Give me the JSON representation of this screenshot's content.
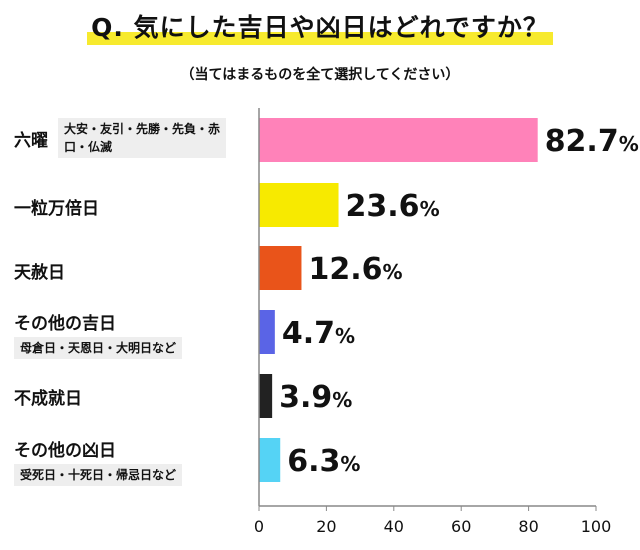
{
  "header": {
    "title": "Q. 気にした吉日や凶日はどれですか？",
    "subtitle": "（当てはまるものを全て選択してください）"
  },
  "chart_data": {
    "type": "bar",
    "orientation": "horizontal",
    "unit": "%",
    "xlim": [
      0,
      100
    ],
    "xticks": [
      "0",
      "20",
      "40",
      "60",
      "80",
      "100"
    ],
    "bars": [
      {
        "label": "六曜",
        "sublabel": "大安・友引・先勝・先負・赤口・仏滅",
        "value": 82.7,
        "display": "82.7",
        "color": "#ff82b9"
      },
      {
        "label": "一粒万倍日",
        "sublabel": "",
        "value": 23.6,
        "display": "23.6",
        "color": "#f7ea00"
      },
      {
        "label": "天赦日",
        "sublabel": "",
        "value": 12.6,
        "display": "12.6",
        "color": "#e9541a"
      },
      {
        "label": "その他の吉日",
        "sublabel": "母倉日・天恩日・大明日など",
        "value": 4.7,
        "display": "4.7",
        "color": "#5a64e6"
      },
      {
        "label": "不成就日",
        "sublabel": "",
        "value": 3.9,
        "display": "3.9",
        "color": "#222222"
      },
      {
        "label": "その他の凶日",
        "sublabel": "受死日・十死日・帰忌日など",
        "value": 6.3,
        "display": "6.3",
        "color": "#55d3f5"
      }
    ]
  },
  "colors": {
    "highlight": "#f7ea2e",
    "axis": "#888888",
    "grid": "#cccccc"
  }
}
